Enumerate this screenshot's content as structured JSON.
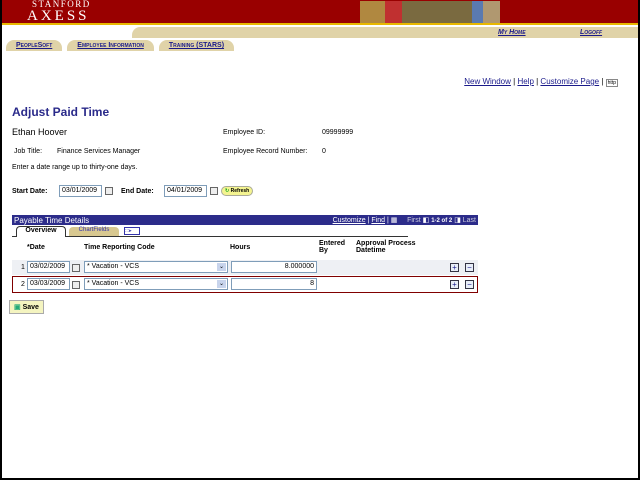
{
  "header": {
    "logo_top": "STANFORD",
    "logo_main": "AXESS",
    "my_home": "My Home",
    "logoff": "Logoff"
  },
  "tabs": [
    "PeopleSoft",
    "Employee Information",
    "Training (STARS)"
  ],
  "page_links": {
    "new_window": "New Window",
    "help": "Help",
    "customize_page": "Customize Page",
    "http_icon_label": "http"
  },
  "title": "Adjust Paid Time",
  "employee": {
    "name": "Ethan Hoover",
    "id_label": "Employee ID:",
    "id": "09999999",
    "job_title_label": "Job Title:",
    "job_title": "Finance Services Manager",
    "record_label": "Employee Record Number:",
    "record": "0"
  },
  "instructions": "Enter a date range up to thirty-one days.",
  "dates": {
    "start_label": "Start Date:",
    "start": "03/01/2009",
    "end_label": "End Date:",
    "end": "04/01/2009",
    "refresh": "Refresh"
  },
  "grid": {
    "title": "Payable Time Details",
    "customize": "Customize",
    "find": "Find",
    "first": "First",
    "range": "1-2 of 2",
    "last": "Last",
    "tabs": [
      "Overview",
      "ChartFields"
    ],
    "columns": [
      "*Date",
      "Time Reporting Code",
      "Hours",
      "Entered By",
      "Approval Process Datetime"
    ],
    "rows": [
      {
        "num": "1",
        "date": "03/02/2009",
        "code": "* Vacation - VCS",
        "hours": "8.000000"
      },
      {
        "num": "2",
        "date": "03/03/2009",
        "code": "* Vacation - VCS",
        "hours": "8"
      }
    ]
  },
  "save": "Save"
}
